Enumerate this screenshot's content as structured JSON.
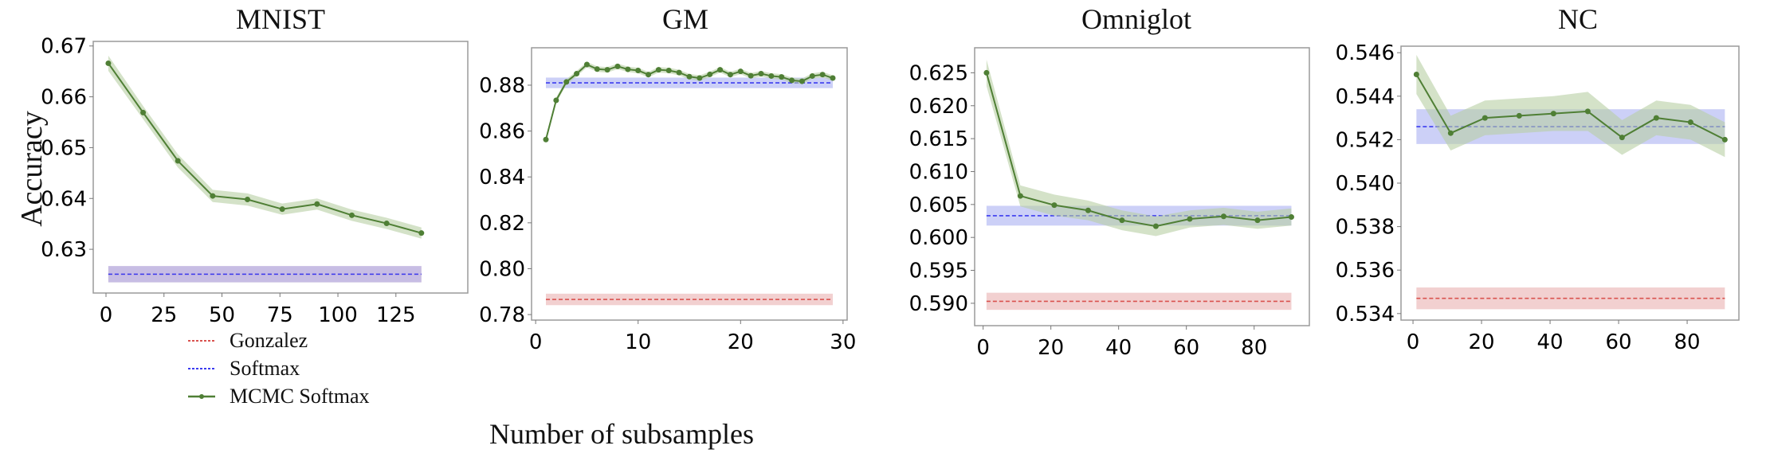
{
  "figure": {
    "ylabel": "Accuracy",
    "xlabel": "Number of subsamples",
    "legend": {
      "placement": "bottom-left",
      "entries": [
        {
          "name": "Gonzalez",
          "style": "dashed",
          "color": "#d9534f"
        },
        {
          "name": "Softmax",
          "style": "dashed",
          "color": "#3b3bf0"
        },
        {
          "name": "MCMC Softmax",
          "style": "line-marker",
          "color": "#4f7f35"
        }
      ]
    },
    "colors": {
      "gonzalez": "#d9534f",
      "gonzalez_band": "#e7a9a9",
      "softmax": "#3b3bf0",
      "softmax_band": "#aab0f2",
      "mcmc": "#4f7f35",
      "mcmc_band": "#b7cfa3"
    }
  },
  "chart_data": [
    {
      "type": "line",
      "title": "MNIST",
      "xlim": [
        -5.5,
        156
      ],
      "ylim": [
        0.6214,
        0.6709
      ],
      "xticks": [
        0,
        25,
        50,
        75,
        100,
        125
      ],
      "yticks": [
        0.63,
        0.64,
        0.65,
        0.66,
        0.67
      ],
      "ytick_labels": [
        "0.63",
        "0.64",
        "0.65",
        "0.66",
        "0.67"
      ],
      "grid": false,
      "series": [
        {
          "name": "MCMC Softmax",
          "x": [
            1,
            16,
            31,
            46,
            61,
            76,
            91,
            106,
            121,
            136
          ],
          "y": [
            0.6666,
            0.6569,
            0.6474,
            0.6405,
            0.6398,
            0.6379,
            0.6389,
            0.6367,
            0.6351,
            0.6332
          ],
          "band": [
            0.0015,
            0.0013,
            0.0013,
            0.0012,
            0.0012,
            0.0011,
            0.0011,
            0.0011,
            0.0011,
            0.0011
          ]
        },
        {
          "name": "Softmax",
          "value": 0.6251,
          "band": 0.0016,
          "xrange": [
            1,
            136
          ]
        },
        {
          "name": "Gonzalez",
          "value": 0.6251,
          "band": 0.0016,
          "xrange": [
            1,
            136
          ]
        }
      ]
    },
    {
      "type": "line",
      "title": "GM",
      "xlim": [
        -0.4,
        30.4
      ],
      "ylim": [
        0.7776,
        0.8963
      ],
      "xticks": [
        0,
        10,
        20,
        30
      ],
      "yticks": [
        0.78,
        0.8,
        0.82,
        0.84,
        0.86,
        0.88
      ],
      "ytick_labels": [
        "0.78",
        "0.80",
        "0.82",
        "0.84",
        "0.86",
        "0.88"
      ],
      "grid": false,
      "series": [
        {
          "name": "MCMC Softmax",
          "x": [
            1,
            2,
            3,
            4,
            5,
            6,
            7,
            8,
            9,
            10,
            11,
            12,
            13,
            14,
            15,
            16,
            17,
            18,
            19,
            20,
            21,
            22,
            23,
            24,
            25,
            26,
            27,
            28,
            29
          ],
          "y": [
            0.8563,
            0.8734,
            0.8814,
            0.885,
            0.889,
            0.887,
            0.8867,
            0.8882,
            0.8869,
            0.8864,
            0.8846,
            0.8867,
            0.8864,
            0.8855,
            0.8837,
            0.8831,
            0.8847,
            0.8867,
            0.8846,
            0.886,
            0.8841,
            0.885,
            0.884,
            0.8836,
            0.8821,
            0.8817,
            0.884,
            0.8846,
            0.8831
          ],
          "band": [
            0.0012,
            0.0012,
            0.0012,
            0.0012,
            0.0012,
            0.0012,
            0.0012,
            0.0012,
            0.0012,
            0.0012,
            0.0012,
            0.0012,
            0.0012,
            0.0012,
            0.0012,
            0.0012,
            0.0012,
            0.0012,
            0.0012,
            0.0012,
            0.0012,
            0.0012,
            0.0012,
            0.0012,
            0.0012,
            0.0012,
            0.0012,
            0.0012,
            0.0012
          ]
        },
        {
          "name": "Softmax",
          "value": 0.881,
          "band": 0.0023,
          "xrange": [
            1,
            29
          ]
        },
        {
          "name": "Gonzalez",
          "value": 0.7866,
          "band": 0.0025,
          "xrange": [
            1,
            29
          ]
        }
      ]
    },
    {
      "type": "line",
      "title": "Omniglot",
      "xlim": [
        -2.5,
        96.3
      ],
      "ylim": [
        0.5866,
        0.6288
      ],
      "xticks": [
        0,
        20,
        40,
        60,
        80
      ],
      "yticks": [
        0.59,
        0.595,
        0.6,
        0.605,
        0.61,
        0.615,
        0.62,
        0.625
      ],
      "ytick_labels": [
        "0.590",
        "0.595",
        "0.600",
        "0.605",
        "0.610",
        "0.615",
        "0.620",
        "0.625"
      ],
      "grid": false,
      "series": [
        {
          "name": "MCMC Softmax",
          "x": [
            1,
            11,
            21,
            31,
            41,
            51,
            61,
            71,
            81,
            91
          ],
          "y": [
            0.625,
            0.6063,
            0.6049,
            0.6041,
            0.6026,
            0.6017,
            0.6028,
            0.6032,
            0.6026,
            0.6031
          ],
          "band": [
            0.002,
            0.0016,
            0.0016,
            0.0015,
            0.0015,
            0.0015,
            0.0013,
            0.0013,
            0.0013,
            0.0013
          ]
        },
        {
          "name": "Softmax",
          "value": 0.6033,
          "band": 0.0015,
          "xrange": [
            1,
            91
          ]
        },
        {
          "name": "Gonzalez",
          "value": 0.5903,
          "band": 0.0013,
          "xrange": [
            1,
            91
          ]
        }
      ]
    },
    {
      "type": "line",
      "title": "NC",
      "xlim": [
        -3.5,
        95.1
      ],
      "ylim": [
        0.5337,
        0.5463
      ],
      "xticks": [
        0,
        20,
        40,
        60,
        80
      ],
      "yticks": [
        0.534,
        0.536,
        0.538,
        0.54,
        0.542,
        0.544,
        0.546
      ],
      "ytick_labels": [
        "0.534",
        "0.536",
        "0.538",
        "0.540",
        "0.542",
        "0.544",
        "0.546"
      ],
      "grid": false,
      "series": [
        {
          "name": "MCMC Softmax",
          "x": [
            1,
            11,
            21,
            31,
            41,
            51,
            61,
            71,
            81,
            91
          ],
          "y": [
            0.545,
            0.5423,
            0.543,
            0.5431,
            0.5432,
            0.5433,
            0.5421,
            0.543,
            0.5428,
            0.542
          ],
          "band": [
            0.0009,
            0.0008,
            0.0008,
            0.0008,
            0.0008,
            0.0009,
            0.0008,
            0.0008,
            0.0008,
            0.0008
          ]
        },
        {
          "name": "Softmax",
          "value": 0.5426,
          "band": 0.0008,
          "xrange": [
            1,
            91
          ]
        },
        {
          "name": "Gonzalez",
          "value": 0.5347,
          "band": 0.0005,
          "xrange": [
            1,
            91
          ]
        }
      ]
    }
  ]
}
